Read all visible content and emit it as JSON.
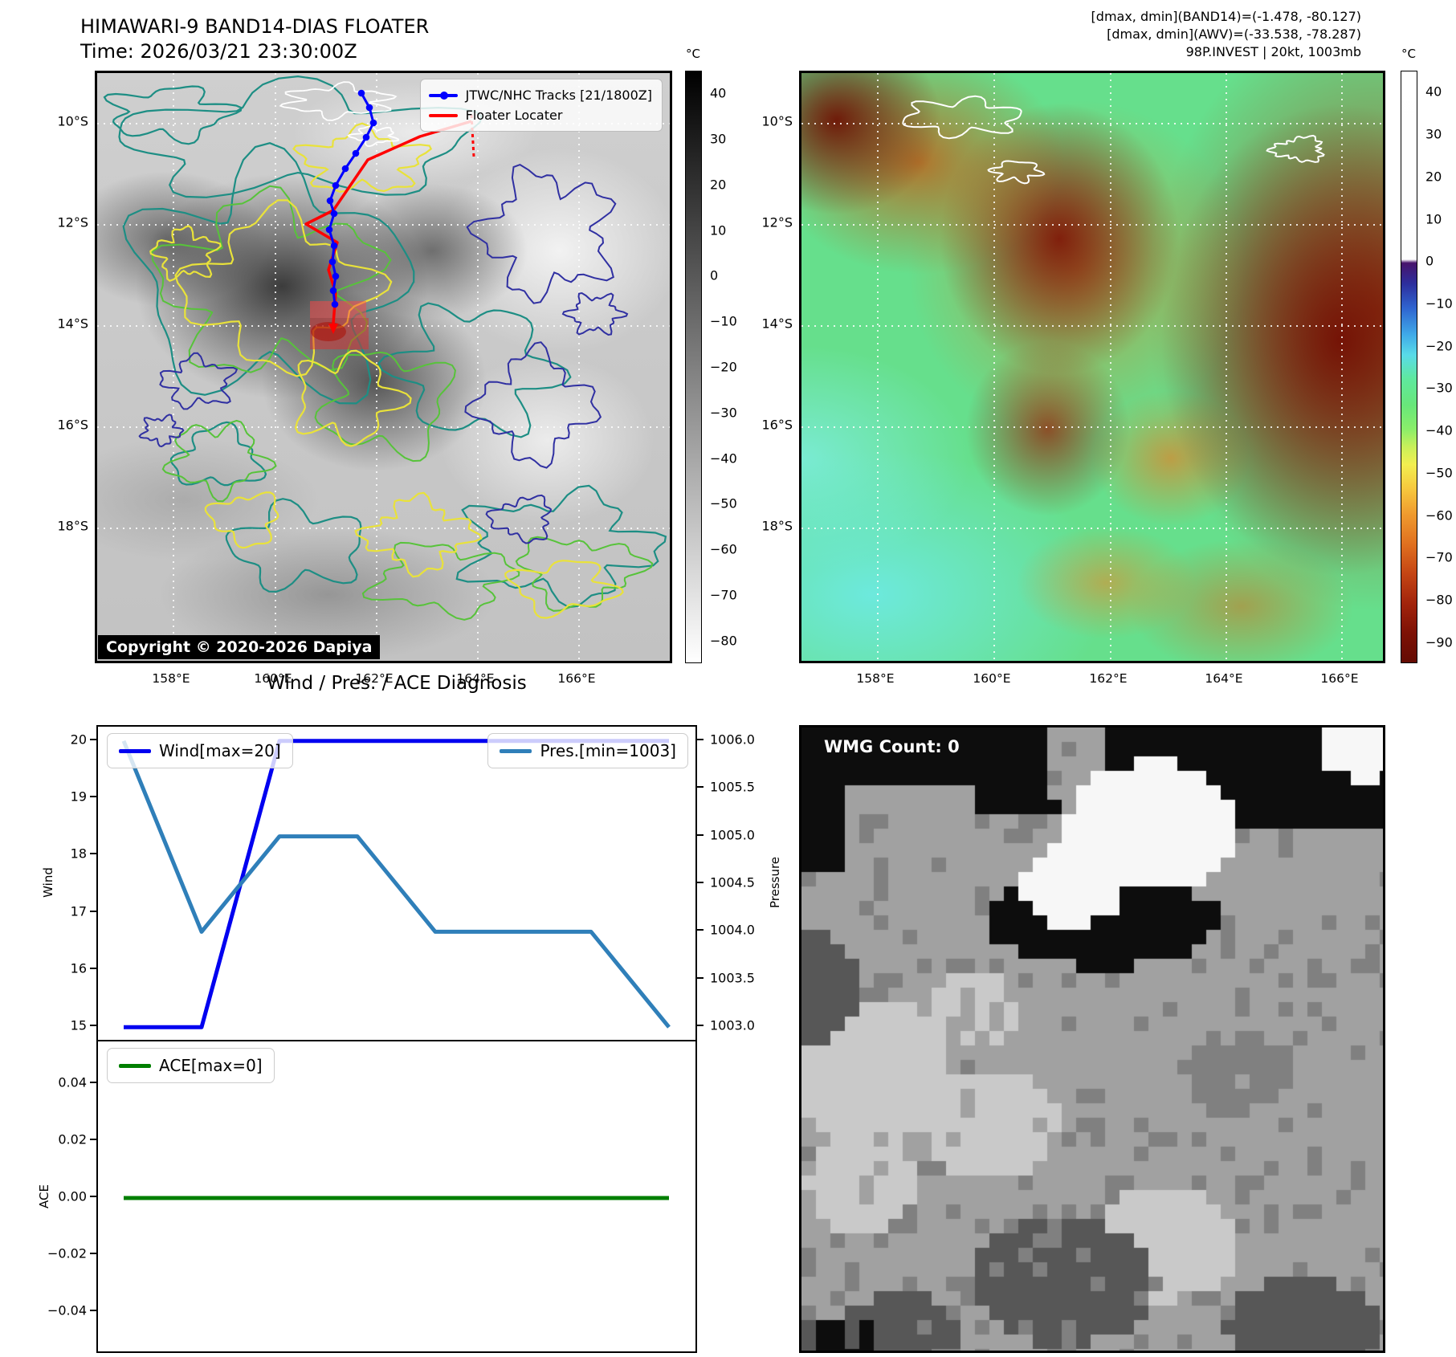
{
  "header": {
    "title_line1": "HIMAWARI-9 BAND14-DIAS FLOATER",
    "title_line2": "Time: 2026/03/21 23:30:00Z",
    "right_line1": "[dmax, dmin](BAND14)=(-1.478, -80.127)",
    "right_line2": "[dmax, dmin](AWV)=(-33.538, -78.287)",
    "right_line3": "98P.INVEST | 20kt, 1003mb"
  },
  "band14_panel": {
    "legend": {
      "track_label": "JTWC/NHC Tracks [21/1800Z]",
      "track_color": "#0000ff",
      "floater_label": "Floater Locater",
      "floater_color": "#ff0000"
    },
    "copyright": "Copyright © 2020-2026 Dapiya",
    "lat_ticks": [
      "10°S",
      "12°S",
      "14°S",
      "16°S",
      "18°S"
    ],
    "lon_ticks": [
      "158°E",
      "160°E",
      "162°E",
      "164°E",
      "166°E"
    ],
    "colorbar": {
      "unit": "°C",
      "ticks": [
        40,
        30,
        20,
        10,
        0,
        -10,
        -20,
        -30,
        -40,
        -50,
        -60,
        -70,
        -80
      ],
      "top_color": "#000000",
      "bottom_color": "#ffffff"
    },
    "jtwc_track_points": [
      [
        329,
        25
      ],
      [
        339,
        43
      ],
      [
        344,
        62
      ],
      [
        335,
        80
      ],
      [
        322,
        100
      ],
      [
        309,
        119
      ],
      [
        297,
        140
      ],
      [
        290,
        159
      ],
      [
        295,
        175
      ],
      [
        289,
        195
      ],
      [
        295,
        215
      ],
      [
        293,
        235
      ],
      [
        297,
        253
      ],
      [
        294,
        271
      ],
      [
        296,
        288
      ]
    ],
    "floater_track_points": [
      [
        466,
        60
      ],
      [
        402,
        79
      ],
      [
        337,
        108
      ],
      [
        294,
        171
      ],
      [
        260,
        188
      ],
      [
        299,
        211
      ],
      [
        288,
        245
      ],
      [
        297,
        274
      ],
      [
        294,
        312
      ]
    ],
    "floater_dashed_segment": [
      [
        466,
        52
      ],
      [
        469,
        104
      ]
    ]
  },
  "awv_panel": {
    "lat_ticks": [
      "10°S",
      "12°S",
      "14°S",
      "16°S",
      "18°S"
    ],
    "lon_ticks": [
      "158°E",
      "160°E",
      "162°E",
      "164°E",
      "166°E"
    ],
    "colorbar": {
      "unit": "°C",
      "ticks": [
        40,
        30,
        20,
        10,
        0,
        -10,
        -20,
        -30,
        -40,
        -50,
        -60,
        -70,
        -80,
        -90
      ]
    }
  },
  "chart_data": {
    "type": "line",
    "title": "Wind / Pres. / ACE Diagnosis",
    "x": [
      0,
      1,
      2,
      3,
      4,
      5,
      6,
      7
    ],
    "xlabel": "",
    "grid": false,
    "subplots": [
      {
        "ylabel_left": "Wind",
        "ylabel_right": "Pressure",
        "ylim_left": [
          14.75,
          20.25
        ],
        "ylim_right": [
          1002.85,
          1006.15
        ],
        "yticks_left": [
          20,
          19,
          18,
          17,
          16,
          15
        ],
        "yticks_right": [
          1006.0,
          1005.5,
          1005.0,
          1004.5,
          1004.0,
          1003.5,
          1003.0
        ],
        "series": [
          {
            "name": "Wind[max=20]",
            "axis": "left",
            "color": "#0000f0",
            "values": [
              15,
              15,
              20,
              20,
              20,
              20,
              20,
              20
            ]
          },
          {
            "name": "Pres.[min=1003]",
            "axis": "right",
            "color": "#2f7fb9",
            "values": [
              1006.0,
              1004.0,
              1005.0,
              1005.0,
              1004.0,
              1004.0,
              1004.0,
              1003.0
            ]
          }
        ]
      },
      {
        "ylabel_left": "ACE",
        "ylim_left": [
          -0.055,
          0.055
        ],
        "yticks_left": [
          0.04,
          0.02,
          0,
          -0.02,
          -0.04
        ],
        "series": [
          {
            "name": "ACE[max=0]",
            "axis": "left",
            "color": "#007f00",
            "values": [
              0,
              0,
              0,
              0,
              0,
              0,
              0,
              0
            ]
          }
        ]
      }
    ]
  },
  "wmg_panel": {
    "label": "WMG Count: 0"
  }
}
